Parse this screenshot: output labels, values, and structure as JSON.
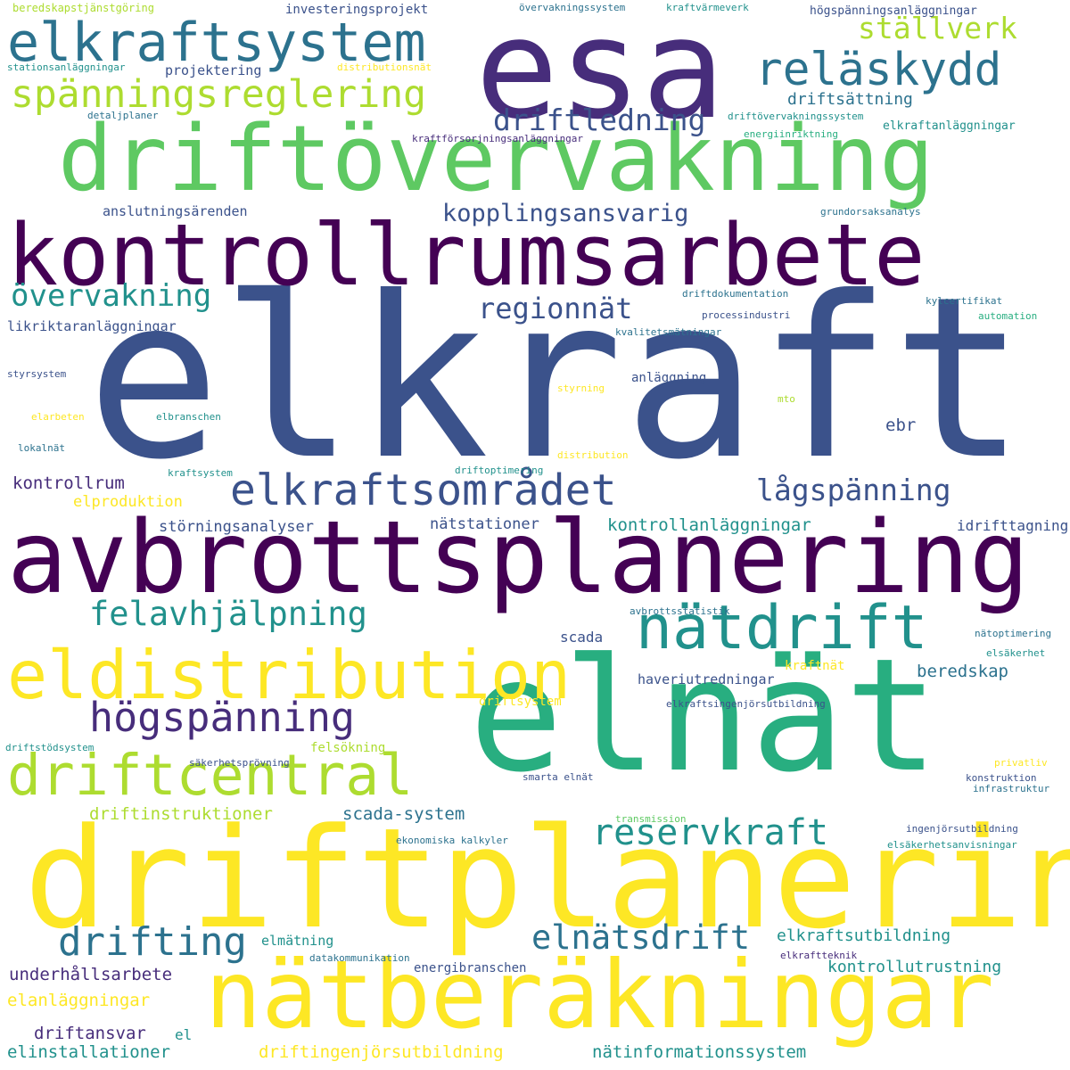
{
  "palette": {
    "dark_purple": "#440154",
    "indigo": "#472d7b",
    "slate_blue": "#3b528b",
    "steel_blue": "#2c728e",
    "teal": "#21918c",
    "green_teal": "#28ae80",
    "green": "#5ec962",
    "yellow_green": "#addc30",
    "yellow": "#fde725"
  },
  "words": [
    {
      "text": "elkraft",
      "color": "slate_blue"
    },
    {
      "text": "esa",
      "color": "indigo"
    },
    {
      "text": "elnät",
      "color": "green_teal"
    },
    {
      "text": "driftplanering",
      "color": "yellow"
    },
    {
      "text": "avbrottsplanering",
      "color": "dark_purple"
    },
    {
      "text": "kontrollrumsarbete",
      "color": "dark_purple"
    },
    {
      "text": "driftövervakning",
      "color": "green"
    },
    {
      "text": "nätberäkningar",
      "color": "yellow"
    },
    {
      "text": "elkraftsystem",
      "color": "steel_blue"
    },
    {
      "text": "eldistribution",
      "color": "yellow"
    },
    {
      "text": "nätdrift",
      "color": "teal"
    },
    {
      "text": "driftcentral",
      "color": "yellow_green"
    },
    {
      "text": "elkraftsområdet",
      "color": "slate_blue"
    },
    {
      "text": "reläskydd",
      "color": "steel_blue"
    },
    {
      "text": "högspänning",
      "color": "indigo"
    },
    {
      "text": "spänningsreglering",
      "color": "yellow_green"
    },
    {
      "text": "drifting",
      "color": "steel_blue"
    },
    {
      "text": "reservkraft",
      "color": "teal"
    },
    {
      "text": "elnätsdrift",
      "color": "steel_blue"
    },
    {
      "text": "felavhjälpning",
      "color": "teal"
    },
    {
      "text": "driftledning",
      "color": "slate_blue"
    },
    {
      "text": "lågspänning",
      "color": "slate_blue"
    },
    {
      "text": "regionnät",
      "color": "slate_blue"
    },
    {
      "text": "övervakning",
      "color": "teal"
    },
    {
      "text": "ställverk",
      "color": "yellow_green"
    },
    {
      "text": "kopplingsansvarig",
      "color": "slate_blue"
    },
    {
      "text": "underhållsarbete",
      "color": "indigo"
    },
    {
      "text": "elanläggningar",
      "color": "yellow"
    },
    {
      "text": "driftansvar",
      "color": "indigo"
    },
    {
      "text": "elinstallationer",
      "color": "teal"
    },
    {
      "text": "driftingenjörsutbildning",
      "color": "yellow"
    },
    {
      "text": "nätinformationssystem",
      "color": "teal"
    },
    {
      "text": "elkraftsutbildning",
      "color": "teal"
    },
    {
      "text": "kontrollutrustning",
      "color": "teal"
    },
    {
      "text": "scada-system",
      "color": "steel_blue"
    },
    {
      "text": "beredskap",
      "color": "steel_blue"
    },
    {
      "text": "kontrollanläggningar",
      "color": "teal"
    },
    {
      "text": "driftinstruktioner",
      "color": "yellow_green"
    },
    {
      "text": "driftsättning",
      "color": "steel_blue"
    },
    {
      "text": "kontrollrum",
      "color": "indigo"
    },
    {
      "text": "elproduktion",
      "color": "yellow"
    },
    {
      "text": "störningsanalyser",
      "color": "slate_blue"
    },
    {
      "text": "nätstationer",
      "color": "slate_blue"
    },
    {
      "text": "idrifttagning",
      "color": "slate_blue"
    },
    {
      "text": "ebr",
      "color": "slate_blue"
    },
    {
      "text": "haveriutredningar",
      "color": "slate_blue"
    },
    {
      "text": "scada",
      "color": "slate_blue"
    },
    {
      "text": "el",
      "color": "teal"
    },
    {
      "text": "anslutningsärenden",
      "color": "slate_blue"
    },
    {
      "text": "likriktaranläggningar",
      "color": "slate_blue"
    },
    {
      "text": "projektering",
      "color": "slate_blue"
    },
    {
      "text": "investeringsprojekt",
      "color": "slate_blue"
    },
    {
      "text": "högspänningsanläggningar",
      "color": "slate_blue"
    },
    {
      "text": "elkraftanläggningar",
      "color": "teal"
    },
    {
      "text": "elmätning",
      "color": "teal"
    },
    {
      "text": "energibranschen",
      "color": "slate_blue"
    },
    {
      "text": "anläggning",
      "color": "slate_blue"
    },
    {
      "text": "kraftnät",
      "color": "yellow"
    },
    {
      "text": "felsökning",
      "color": "yellow_green"
    },
    {
      "text": "driftsystem",
      "color": "yellow"
    },
    {
      "text": "beredskapstjänstgöring",
      "color": "yellow_green"
    },
    {
      "text": "övervakningssystem",
      "color": "steel_blue"
    },
    {
      "text": "kraftvärmeverk",
      "color": "teal"
    },
    {
      "text": "stationsanläggningar",
      "color": "teal"
    },
    {
      "text": "distributionsnät",
      "color": "yellow"
    },
    {
      "text": "detaljplaner",
      "color": "steel_blue"
    },
    {
      "text": "driftövervakningssystem",
      "color": "teal"
    },
    {
      "text": "energiinriktning",
      "color": "green_teal"
    },
    {
      "text": "kraftförsorjningsanläggningar",
      "color": "indigo"
    },
    {
      "text": "grundorsaksanalys",
      "color": "steel_blue"
    },
    {
      "text": "driftdokumentation",
      "color": "steel_blue"
    },
    {
      "text": "kylcertifikat",
      "color": "steel_blue"
    },
    {
      "text": "processindustri",
      "color": "slate_blue"
    },
    {
      "text": "automation",
      "color": "green_teal"
    },
    {
      "text": "kvalitetsmätningar",
      "color": "steel_blue"
    },
    {
      "text": "styrsystem",
      "color": "slate_blue"
    },
    {
      "text": "styrning",
      "color": "yellow"
    },
    {
      "text": "mto",
      "color": "yellow_green"
    },
    {
      "text": "elarbeten",
      "color": "yellow"
    },
    {
      "text": "elbranschen",
      "color": "teal"
    },
    {
      "text": "lokalnät",
      "color": "steel_blue"
    },
    {
      "text": "kraftsystem",
      "color": "teal"
    },
    {
      "text": "driftoptimering",
      "color": "teal"
    },
    {
      "text": "distribution",
      "color": "yellow"
    },
    {
      "text": "avbrottsstatistik",
      "color": "steel_blue"
    },
    {
      "text": "nätoptimering",
      "color": "steel_blue"
    },
    {
      "text": "elsäkerhet",
      "color": "teal"
    },
    {
      "text": "elkraftsingenjörsutbildning",
      "color": "slate_blue"
    },
    {
      "text": "driftstödsystem",
      "color": "teal"
    },
    {
      "text": "säkerhetsprövning",
      "color": "slate_blue"
    },
    {
      "text": "smarta elnät",
      "color": "slate_blue"
    },
    {
      "text": "privatliv",
      "color": "yellow"
    },
    {
      "text": "konstruktion",
      "color": "slate_blue"
    },
    {
      "text": "infrastruktur",
      "color": "steel_blue"
    },
    {
      "text": "transmission",
      "color": "green"
    },
    {
      "text": "ingenjörsutbildning",
      "color": "slate_blue"
    },
    {
      "text": "ekonomiska kalkyler",
      "color": "steel_blue"
    },
    {
      "text": "elsäkerhetsanvisningar",
      "color": "teal"
    },
    {
      "text": "datakommunikation",
      "color": "steel_blue"
    },
    {
      "text": "elkraftteknik",
      "color": "indigo"
    }
  ]
}
